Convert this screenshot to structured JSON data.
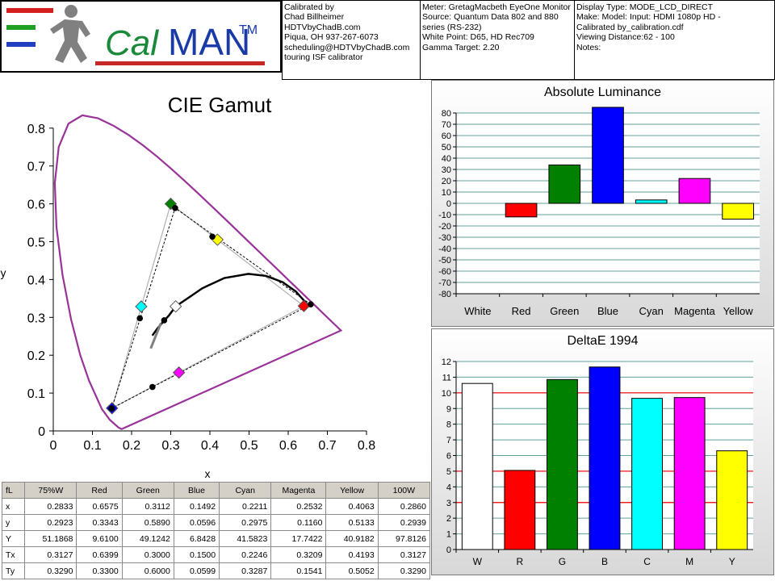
{
  "header": {
    "logo_text_cal": "Cal",
    "logo_text_man": "MAN",
    "logo_tm": "TM",
    "calibrator": [
      "Calibrated by",
      "Chad Billheimer",
      "HDTVbyChadB.com",
      "Piqua, OH 937-267-6073",
      "scheduling@HDTVbyChadB.com",
      "touring ISF calibrator"
    ],
    "meter": [
      "Meter: GretagMacbeth EyeOne Monitor",
      "Source: Quantum Data 802 and 880",
      "series (RS-232)",
      "White Point: D65, HD Rec709",
      "Gamma Target: 2.20"
    ],
    "display": [
      "Display Type: MODE_LCD_DIRECT",
      "Make: Model: Input: HDMI 1080p HD    -",
      "Calibrated by_calibration.cdf",
      "Viewing Distance:62 - 100",
      "Notes:"
    ]
  },
  "colors": {
    "white": "#ffffff",
    "red": "#ff0000",
    "green": "#008000",
    "blue": "#0000ff",
    "cyan": "#00ffff",
    "magenta": "#ff00ff",
    "yellow": "#ffff00",
    "locus": "#993399",
    "grid": "#5fa29a",
    "threshold": "#ff0000"
  },
  "chart_data": [
    {
      "type": "scatter",
      "title": "CIE Gamut",
      "xlabel": "x",
      "ylabel": "y",
      "xlim": [
        0,
        0.85
      ],
      "ylim": [
        0,
        0.85
      ],
      "x_ticks": [
        "0",
        "0.1",
        "0.2",
        "0.3",
        "0.4",
        "0.5",
        "0.6",
        "0.7",
        "0.8"
      ],
      "y_ticks": [
        "0",
        "0.1",
        "0.2",
        "0.3",
        "0.4",
        "0.5",
        "0.6",
        "0.7",
        "0.8"
      ],
      "locus": [
        [
          0.175,
          0.005
        ],
        [
          0.1741,
          0.005
        ],
        [
          0.1666,
          0.0089
        ],
        [
          0.144,
          0.0297
        ],
        [
          0.1241,
          0.0578
        ],
        [
          0.0913,
          0.1327
        ],
        [
          0.0687,
          0.2007
        ],
        [
          0.0454,
          0.295
        ],
        [
          0.0235,
          0.4127
        ],
        [
          0.0082,
          0.5384
        ],
        [
          0.0039,
          0.6548
        ],
        [
          0.0139,
          0.7502
        ],
        [
          0.0389,
          0.812
        ],
        [
          0.0743,
          0.8338
        ],
        [
          0.1142,
          0.8262
        ],
        [
          0.1547,
          0.8059
        ],
        [
          0.1929,
          0.7816
        ],
        [
          0.2296,
          0.7543
        ],
        [
          0.2658,
          0.7243
        ],
        [
          0.3016,
          0.6923
        ],
        [
          0.3373,
          0.6589
        ],
        [
          0.3731,
          0.6245
        ],
        [
          0.4087,
          0.5896
        ],
        [
          0.4441,
          0.5547
        ],
        [
          0.4788,
          0.5202
        ],
        [
          0.5125,
          0.4866
        ],
        [
          0.5448,
          0.4544
        ],
        [
          0.5752,
          0.4242
        ],
        [
          0.6029,
          0.3965
        ],
        [
          0.627,
          0.3725
        ],
        [
          0.6482,
          0.3514
        ],
        [
          0.6658,
          0.334
        ],
        [
          0.6801,
          0.3197
        ],
        [
          0.6915,
          0.3083
        ],
        [
          0.7006,
          0.2993
        ],
        [
          0.7079,
          0.292
        ],
        [
          0.714,
          0.2859
        ],
        [
          0.719,
          0.2809
        ],
        [
          0.723,
          0.277
        ],
        [
          0.726,
          0.274
        ],
        [
          0.7347,
          0.2653
        ],
        [
          0.175,
          0.005
        ]
      ],
      "target_triangle": [
        [
          0.64,
          0.33
        ],
        [
          0.3,
          0.6
        ],
        [
          0.15,
          0.06
        ]
      ],
      "measured_triangle": [
        [
          0.6575,
          0.3343
        ],
        [
          0.3112,
          0.589
        ],
        [
          0.1492,
          0.0596
        ]
      ],
      "target_points": [
        {
          "name": "Red",
          "x": 0.64,
          "y": 0.33,
          "color": "#ff0000"
        },
        {
          "name": "Green",
          "x": 0.3,
          "y": 0.6,
          "color": "#008000"
        },
        {
          "name": "Blue",
          "x": 0.15,
          "y": 0.06,
          "color": "#0000ff"
        },
        {
          "name": "Cyan",
          "x": 0.2246,
          "y": 0.3287,
          "color": "#00ffff"
        },
        {
          "name": "Magenta",
          "x": 0.3209,
          "y": 0.1541,
          "color": "#ff00ff"
        },
        {
          "name": "Yellow",
          "x": 0.4193,
          "y": 0.5052,
          "color": "#ffff00"
        },
        {
          "name": "White",
          "x": 0.3127,
          "y": 0.329,
          "color": "#ffffff"
        }
      ],
      "measured_points": [
        {
          "x": 0.6575,
          "y": 0.3343
        },
        {
          "x": 0.3112,
          "y": 0.589
        },
        {
          "x": 0.1492,
          "y": 0.0596
        },
        {
          "x": 0.2211,
          "y": 0.2975
        },
        {
          "x": 0.2532,
          "y": 0.116
        },
        {
          "x": 0.4063,
          "y": 0.5133
        },
        {
          "x": 0.2833,
          "y": 0.2923
        }
      ],
      "planckian": [
        [
          0.253,
          0.252
        ],
        [
          0.2653,
          0.2697
        ],
        [
          0.2804,
          0.2883
        ],
        [
          0.2952,
          0.3048
        ],
        [
          0.3128,
          0.3292
        ],
        [
          0.3449,
          0.3516
        ],
        [
          0.3805,
          0.3768
        ],
        [
          0.437,
          0.404
        ],
        [
          0.4985,
          0.415
        ],
        [
          0.5434,
          0.4095
        ],
        [
          0.5857,
          0.3931
        ],
        [
          0.6195,
          0.3685
        ],
        [
          0.6475,
          0.336
        ]
      ]
    },
    {
      "type": "bar",
      "title": "Absolute Luminance",
      "categories": [
        "White",
        "Red",
        "Green",
        "Blue",
        "Cyan",
        "Magenta",
        "Yellow"
      ],
      "values": [
        0,
        -12,
        34,
        85,
        3,
        22,
        -14
      ],
      "ylim": [
        -80,
        80
      ],
      "y_ticks": [
        80,
        70,
        60,
        50,
        40,
        30,
        20,
        10,
        0,
        -10,
        -20,
        -30,
        -40,
        -50,
        -60,
        -70,
        -80
      ],
      "colors": [
        "#ffffff",
        "#ff0000",
        "#008000",
        "#0000ff",
        "#00ffff",
        "#ff00ff",
        "#ffff00"
      ]
    },
    {
      "type": "bar",
      "title": "DeltaE 1994",
      "categories": [
        "W",
        "R",
        "G",
        "B",
        "C",
        "M",
        "Y"
      ],
      "values": [
        10.6,
        5.05,
        10.85,
        11.65,
        9.65,
        9.7,
        6.3
      ],
      "ylim": [
        0,
        12
      ],
      "y_ticks": [
        12,
        11,
        10,
        9,
        8,
        7,
        6,
        5,
        4,
        3,
        2,
        1,
        0
      ],
      "thresholds": [
        10,
        5,
        3
      ],
      "colors": [
        "#ffffff",
        "#ff0000",
        "#008000",
        "#0000ff",
        "#00ffff",
        "#ff00ff",
        "#ffff00"
      ]
    },
    {
      "type": "table",
      "columns": [
        "fL",
        "75%W",
        "Red",
        "Green",
        "Blue",
        "Cyan",
        "Magenta",
        "Yellow",
        "100W"
      ],
      "rows": [
        [
          "x",
          "0.2833",
          "0.6575",
          "0.3112",
          "0.1492",
          "0.2211",
          "0.2532",
          "0.4063",
          "0.2860"
        ],
        [
          "y",
          "0.2923",
          "0.3343",
          "0.5890",
          "0.0596",
          "0.2975",
          "0.1160",
          "0.5133",
          "0.2939"
        ],
        [
          "Y",
          "51.1868",
          "9.6100",
          "49.1242",
          "6.8428",
          "41.5823",
          "17.7422",
          "40.9182",
          "97.8126"
        ],
        [
          "Tx",
          "0.3127",
          "0.6399",
          "0.3000",
          "0.1500",
          "0.2246",
          "0.3209",
          "0.4193",
          "0.3127"
        ],
        [
          "Ty",
          "0.3290",
          "0.3300",
          "0.6000",
          "0.0599",
          "0.3287",
          "0.1541",
          "0.5052",
          "0.3290"
        ]
      ]
    }
  ]
}
